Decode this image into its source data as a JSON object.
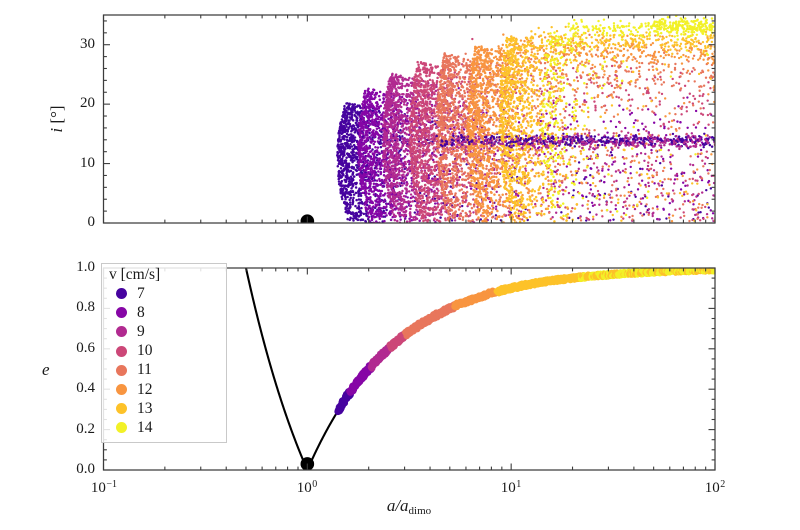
{
  "figure": {
    "background": "#ffffff"
  },
  "chart_data": {
    "type": "scatter",
    "x_axis": {
      "scale": "log",
      "range": [
        0.1,
        100
      ],
      "label": {
        "main": "a/a",
        "sub": "dimo"
      },
      "ticks": [
        {
          "base": "10",
          "exp": "−1",
          "value": 0.1
        },
        {
          "base": "10",
          "exp": "0",
          "value": 1
        },
        {
          "base": "10",
          "exp": "1",
          "value": 10
        },
        {
          "base": "10",
          "exp": "2",
          "value": 100
        }
      ]
    },
    "panels": [
      {
        "id": "inclination",
        "ylabel": {
          "var": "i",
          "unit": "[°]"
        },
        "ylim": [
          0,
          35
        ],
        "ytick_labels": [
          "0",
          "10",
          "20",
          "30"
        ],
        "ytick_values": [
          0,
          10,
          20,
          30
        ],
        "minor_step": 2,
        "black_dot": {
          "a": 1.0,
          "value": 0.3
        },
        "clusters": [
          {
            "v": 7,
            "color": "#46039f",
            "a_min": 1.4,
            "peak_i": 20.3,
            "dense_n": 1000,
            "tail_n": 240,
            "tail_i": 14.0,
            "tail_sigma": 0.5,
            "tail_frac": 0.55,
            "tail_decline": 0.0,
            "stripe_n": 280,
            "stripe_a0": 4.3,
            "stripe_i": 13.8,
            "stripe_sigma": 0.45
          },
          {
            "v": 8,
            "color": "#8606a6",
            "a_min": 1.77,
            "peak_i": 22.8,
            "dense_n": 1000,
            "tail_n": 300,
            "tail_i": 16.0,
            "tail_sigma": 2.4,
            "tail_frac": 0.45,
            "tail_decline": 0.5
          },
          {
            "v": 9,
            "color": "#b12a90",
            "a_min": 2.34,
            "peak_i": 25.2,
            "dense_n": 1000,
            "tail_n": 340,
            "tail_i": 14.0,
            "tail_sigma": 0.7,
            "tail_frac": 0.4,
            "tail_decline": 0.0,
            "stripe_n": 170,
            "stripe_a0": 5.2,
            "stripe_i": 13.4,
            "stripe_sigma": 0.55
          },
          {
            "v": 10,
            "color": "#cc4778",
            "a_min": 3.17,
            "peak_i": 27.2,
            "dense_n": 1000,
            "tail_n": 330,
            "tail_i": 23.0,
            "tail_sigma": 2.4,
            "tail_frac": 0.4,
            "tail_decline": 1.0
          },
          {
            "v": 11,
            "color": "#e8765c",
            "a_min": 4.3,
            "peak_i": 28.6,
            "dense_n": 1000,
            "tail_n": 420,
            "tail_i": 26.5,
            "tail_sigma": 1.8,
            "tail_frac": 0.5,
            "tail_decline": 1.2
          },
          {
            "v": 12,
            "color": "#f89540",
            "a_min": 6.1,
            "peak_i": 30.0,
            "dense_n": 1000,
            "tail_n": 470,
            "tail_i": 29.3,
            "tail_sigma": 1.2,
            "tail_frac": 0.62,
            "tail_decline": 1.0
          },
          {
            "v": 13,
            "color": "#fdc229",
            "a_min": 8.74,
            "peak_i": 31.6,
            "dense_n": 850,
            "tail_n": 300,
            "tail_i": 31.0,
            "tail_sigma": 0.9,
            "tail_frac": 0.8,
            "tail_decline": 0.9
          },
          {
            "v": 14,
            "color": "#f2f127",
            "a_min": 14.0,
            "peak_i": 33.2,
            "dense_n": 240,
            "tail_n": 200,
            "tail_i": 32.8,
            "tail_sigma": 0.65,
            "tail_frac": 0.95,
            "tail_decline": 0.2,
            "blob_n": 130,
            "blob_a0": 50,
            "blob_i": 33.1,
            "blob_sigma": 0.7
          }
        ]
      },
      {
        "id": "eccentricity",
        "ylabel": {
          "var": "e"
        },
        "ylim": [
          0.0,
          1.0
        ],
        "ytick_labels": [
          "0.0",
          "0.2",
          "0.4",
          "0.6",
          "0.8",
          "1.0"
        ],
        "ytick_values": [
          0,
          0.2,
          0.4,
          0.6,
          0.8,
          1.0
        ],
        "minor_step": 0.05,
        "black_dot": {
          "a": 1.0,
          "value": 0.03
        },
        "ejecta_curve": {
          "formula": "e = |1 - a_dimo/a|",
          "black_segment_a": [
            0.5,
            1.425
          ],
          "colored_band_a": [
            1.425,
            100
          ],
          "color_boundaries": [
            1.4,
            1.63,
            2.05,
            2.55,
            3.05,
            5.3,
            8.5,
            22
          ],
          "yellow_mix_beyond": 22
        }
      }
    ],
    "legend": {
      "title": "v [cm/s]",
      "entries": [
        {
          "label": "7",
          "color": "#46039f"
        },
        {
          "label": "8",
          "color": "#8606a6"
        },
        {
          "label": "9",
          "color": "#b12a90"
        },
        {
          "label": "10",
          "color": "#cc4778"
        },
        {
          "label": "11",
          "color": "#e8765c"
        },
        {
          "label": "12",
          "color": "#f89540"
        },
        {
          "label": "13",
          "color": "#fdc229"
        },
        {
          "label": "14",
          "color": "#f2f127"
        }
      ]
    },
    "layout": {
      "axis_color": "#3c3c3c",
      "left": 103.5,
      "right": 715,
      "panel1_top": 15,
      "panel1_bottom": 223,
      "panel2_top": 268,
      "panel2_bottom": 470
    }
  }
}
